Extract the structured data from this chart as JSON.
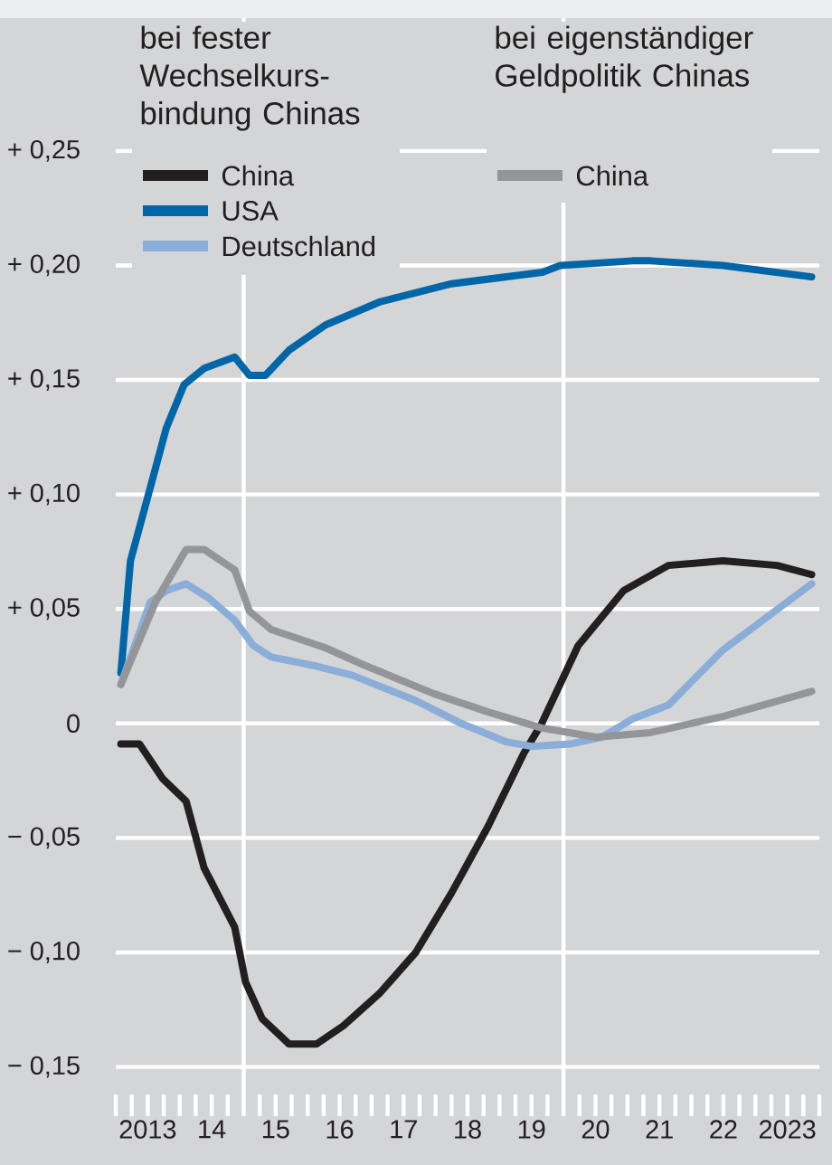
{
  "chart_data": {
    "type": "line",
    "annotations": [
      "bei fester Wechselkurs-bindung Chinas",
      "bei eigenständiger Geldpolitik Chinas"
    ],
    "series": [
      {
        "name": "China",
        "color": "#231f20",
        "x": [
          2012.58,
          2012.87,
          2013.23,
          2013.6,
          2013.88,
          2014.36,
          2014.53,
          2014.79,
          2015.21,
          2015.64,
          2016.06,
          2016.62,
          2017.19,
          2017.75,
          2018.32,
          2018.88,
          2019.16,
          2019.73,
          2020.44,
          2021.14,
          2021.99,
          2022.84,
          2023.38
        ],
        "values": [
          -0.009,
          -0.009,
          -0.024,
          -0.034,
          -0.063,
          -0.089,
          -0.113,
          -0.129,
          -0.14,
          -0.14,
          -0.132,
          -0.118,
          -0.1,
          -0.074,
          -0.045,
          -0.013,
          0.0,
          0.034,
          0.058,
          0.069,
          0.071,
          0.069,
          0.065
        ]
      },
      {
        "name": "USA",
        "color": "#0066a8",
        "x": [
          2012.58,
          2012.73,
          2013.04,
          2013.29,
          2013.57,
          2013.88,
          2014.36,
          2014.59,
          2014.84,
          2015.21,
          2015.78,
          2016.62,
          2017.75,
          2019.17,
          2019.45,
          2020.58,
          2020.86,
          2021.99,
          2023.38
        ],
        "values": [
          0.022,
          0.071,
          0.103,
          0.129,
          0.148,
          0.155,
          0.16,
          0.152,
          0.152,
          0.163,
          0.174,
          0.184,
          0.192,
          0.197,
          0.2,
          0.202,
          0.202,
          0.2,
          0.195
        ]
      },
      {
        "name": "Deutschland",
        "color": "#8aaed8",
        "x": [
          2012.58,
          2013.04,
          2013.29,
          2013.6,
          2013.94,
          2014.36,
          2014.65,
          2014.93,
          2015.64,
          2016.2,
          2017.19,
          2017.9,
          2018.6,
          2019.0,
          2019.6,
          2020.1,
          2020.58,
          2021.14,
          2021.99,
          2023.38
        ],
        "values": [
          0.017,
          0.053,
          0.058,
          0.061,
          0.055,
          0.045,
          0.034,
          0.029,
          0.025,
          0.021,
          0.01,
          0.0,
          -0.008,
          -0.01,
          -0.009,
          -0.006,
          0.002,
          0.008,
          0.032,
          0.061
        ]
      },
      {
        "name": "China",
        "color": "#939598",
        "x": [
          2012.58,
          2013.12,
          2013.6,
          2013.88,
          2014.36,
          2014.59,
          2014.93,
          2015.78,
          2016.34,
          2017.47,
          2018.32,
          2019.16,
          2020.01,
          2020.86,
          2021.99,
          2023.38
        ],
        "values": [
          0.017,
          0.053,
          0.076,
          0.076,
          0.067,
          0.049,
          0.041,
          0.033,
          0.026,
          0.013,
          0.005,
          -0.002,
          -0.006,
          -0.004,
          0.003,
          0.014
        ]
      }
    ],
    "xlim": [
      2012.5,
      2023.5
    ],
    "ylim": [
      -0.162,
      0.308
    ],
    "xticks": [
      {
        "value": 2012.5,
        "label": null
      },
      {
        "value": 2012.75,
        "label": null
      },
      {
        "value": 2013,
        "label": "2013"
      },
      {
        "value": 2013.25,
        "label": null
      },
      {
        "value": 2013.5,
        "label": null
      },
      {
        "value": 2013.75,
        "label": null
      },
      {
        "value": 2014,
        "label": "14"
      },
      {
        "value": 2014.25,
        "label": null
      },
      {
        "value": 2014.5,
        "label": null
      },
      {
        "value": 2014.75,
        "label": null
      },
      {
        "value": 2015,
        "label": "15"
      },
      {
        "value": 2015.25,
        "label": null
      },
      {
        "value": 2015.5,
        "label": null
      },
      {
        "value": 2015.75,
        "label": null
      },
      {
        "value": 2016,
        "label": "16"
      },
      {
        "value": 2016.25,
        "label": null
      },
      {
        "value": 2016.5,
        "label": null
      },
      {
        "value": 2016.75,
        "label": null
      },
      {
        "value": 2017,
        "label": "17"
      },
      {
        "value": 2017.25,
        "label": null
      },
      {
        "value": 2017.5,
        "label": null
      },
      {
        "value": 2017.75,
        "label": null
      },
      {
        "value": 2018,
        "label": "18"
      },
      {
        "value": 2018.25,
        "label": null
      },
      {
        "value": 2018.5,
        "label": null
      },
      {
        "value": 2018.75,
        "label": null
      },
      {
        "value": 2019,
        "label": "19"
      },
      {
        "value": 2019.25,
        "label": null
      },
      {
        "value": 2019.5,
        "label": null
      },
      {
        "value": 2019.75,
        "label": null
      },
      {
        "value": 2020,
        "label": "20"
      },
      {
        "value": 2020.25,
        "label": null
      },
      {
        "value": 2020.5,
        "label": null
      },
      {
        "value": 2020.75,
        "label": null
      },
      {
        "value": 2021,
        "label": "21"
      },
      {
        "value": 2021.25,
        "label": null
      },
      {
        "value": 2021.5,
        "label": null
      },
      {
        "value": 2021.75,
        "label": null
      },
      {
        "value": 2022,
        "label": "22"
      },
      {
        "value": 2022.25,
        "label": null
      },
      {
        "value": 2022.5,
        "label": null
      },
      {
        "value": 2022.75,
        "label": null
      },
      {
        "value": 2023,
        "label": "2023"
      },
      {
        "value": 2023.25,
        "label": null
      },
      {
        "value": 2023.5,
        "label": null
      }
    ],
    "yticks": [
      {
        "value": -0.15,
        "label": "− 0,15"
      },
      {
        "value": -0.1,
        "label": "− 0,10"
      },
      {
        "value": -0.05,
        "label": "− 0,05"
      },
      {
        "value": 0,
        "label": "0"
      },
      {
        "value": 0.05,
        "label": "+ 0,05"
      },
      {
        "value": 0.1,
        "label": "+ 0,10"
      },
      {
        "value": 0.15,
        "label": "+ 0,15"
      },
      {
        "value": 0.2,
        "label": "+ 0,20"
      },
      {
        "value": 0.25,
        "label": "+ 0,25"
      }
    ],
    "ref_lines": [
      {
        "axis": "x",
        "value": 2014.5,
        "color": "#ffffff"
      },
      {
        "axis": "x",
        "value": 2019.5,
        "color": "#ffffff"
      }
    ],
    "grid": "y",
    "legend": "top left",
    "marker": "none",
    "line_style": "solid"
  }
}
